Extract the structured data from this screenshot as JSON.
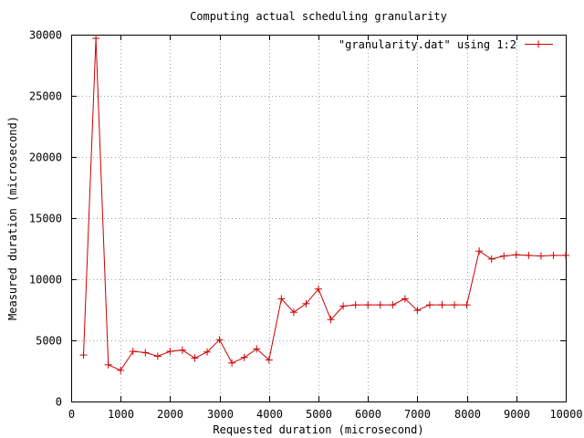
{
  "chart_data": {
    "type": "line",
    "title": "Computing actual scheduling granularity",
    "xlabel": "Requested duration (microsecond)",
    "ylabel": "Measured duration (microsecond)",
    "xlim": [
      0,
      10000
    ],
    "ylim": [
      0,
      30000
    ],
    "xticks": [
      0,
      1000,
      2000,
      3000,
      4000,
      5000,
      6000,
      7000,
      8000,
      9000,
      10000
    ],
    "xtick_labels": [
      "0",
      "1000",
      "2000",
      "3000",
      "4000",
      "5000",
      "6000",
      "7000",
      "8000",
      "9000",
      "10000"
    ],
    "yticks": [
      0,
      5000,
      10000,
      15000,
      20000,
      25000,
      30000
    ],
    "ytick_labels": [
      "0",
      "5000",
      "10000",
      "15000",
      "20000",
      "25000",
      "30000"
    ],
    "grid": true,
    "legend_position": "top-right",
    "colors": {
      "series": "#cc0000"
    },
    "series": [
      {
        "name": "\"granularity.dat\" using 1:2",
        "marker": "plus",
        "x": [
          250,
          500,
          750,
          1000,
          1250,
          1500,
          1750,
          2000,
          2250,
          2500,
          2750,
          3000,
          3250,
          3500,
          3750,
          4000,
          4250,
          4500,
          4750,
          5000,
          5250,
          5500,
          5750,
          6000,
          6250,
          6500,
          6750,
          7000,
          7250,
          7500,
          7750,
          8000,
          8250,
          8500,
          8750,
          9000,
          9250,
          9500,
          9750,
          10000
        ],
        "y": [
          3800,
          29700,
          3000,
          2550,
          4100,
          4000,
          3700,
          4100,
          4200,
          3550,
          4050,
          5050,
          3150,
          3600,
          4300,
          3400,
          8400,
          7300,
          8000,
          9200,
          6700,
          7800,
          7900,
          7900,
          7900,
          7900,
          8400,
          7450,
          7900,
          7900,
          7900,
          7900,
          12300,
          11650,
          11900,
          12000,
          11950,
          11900,
          11950,
          11950
        ]
      }
    ]
  }
}
